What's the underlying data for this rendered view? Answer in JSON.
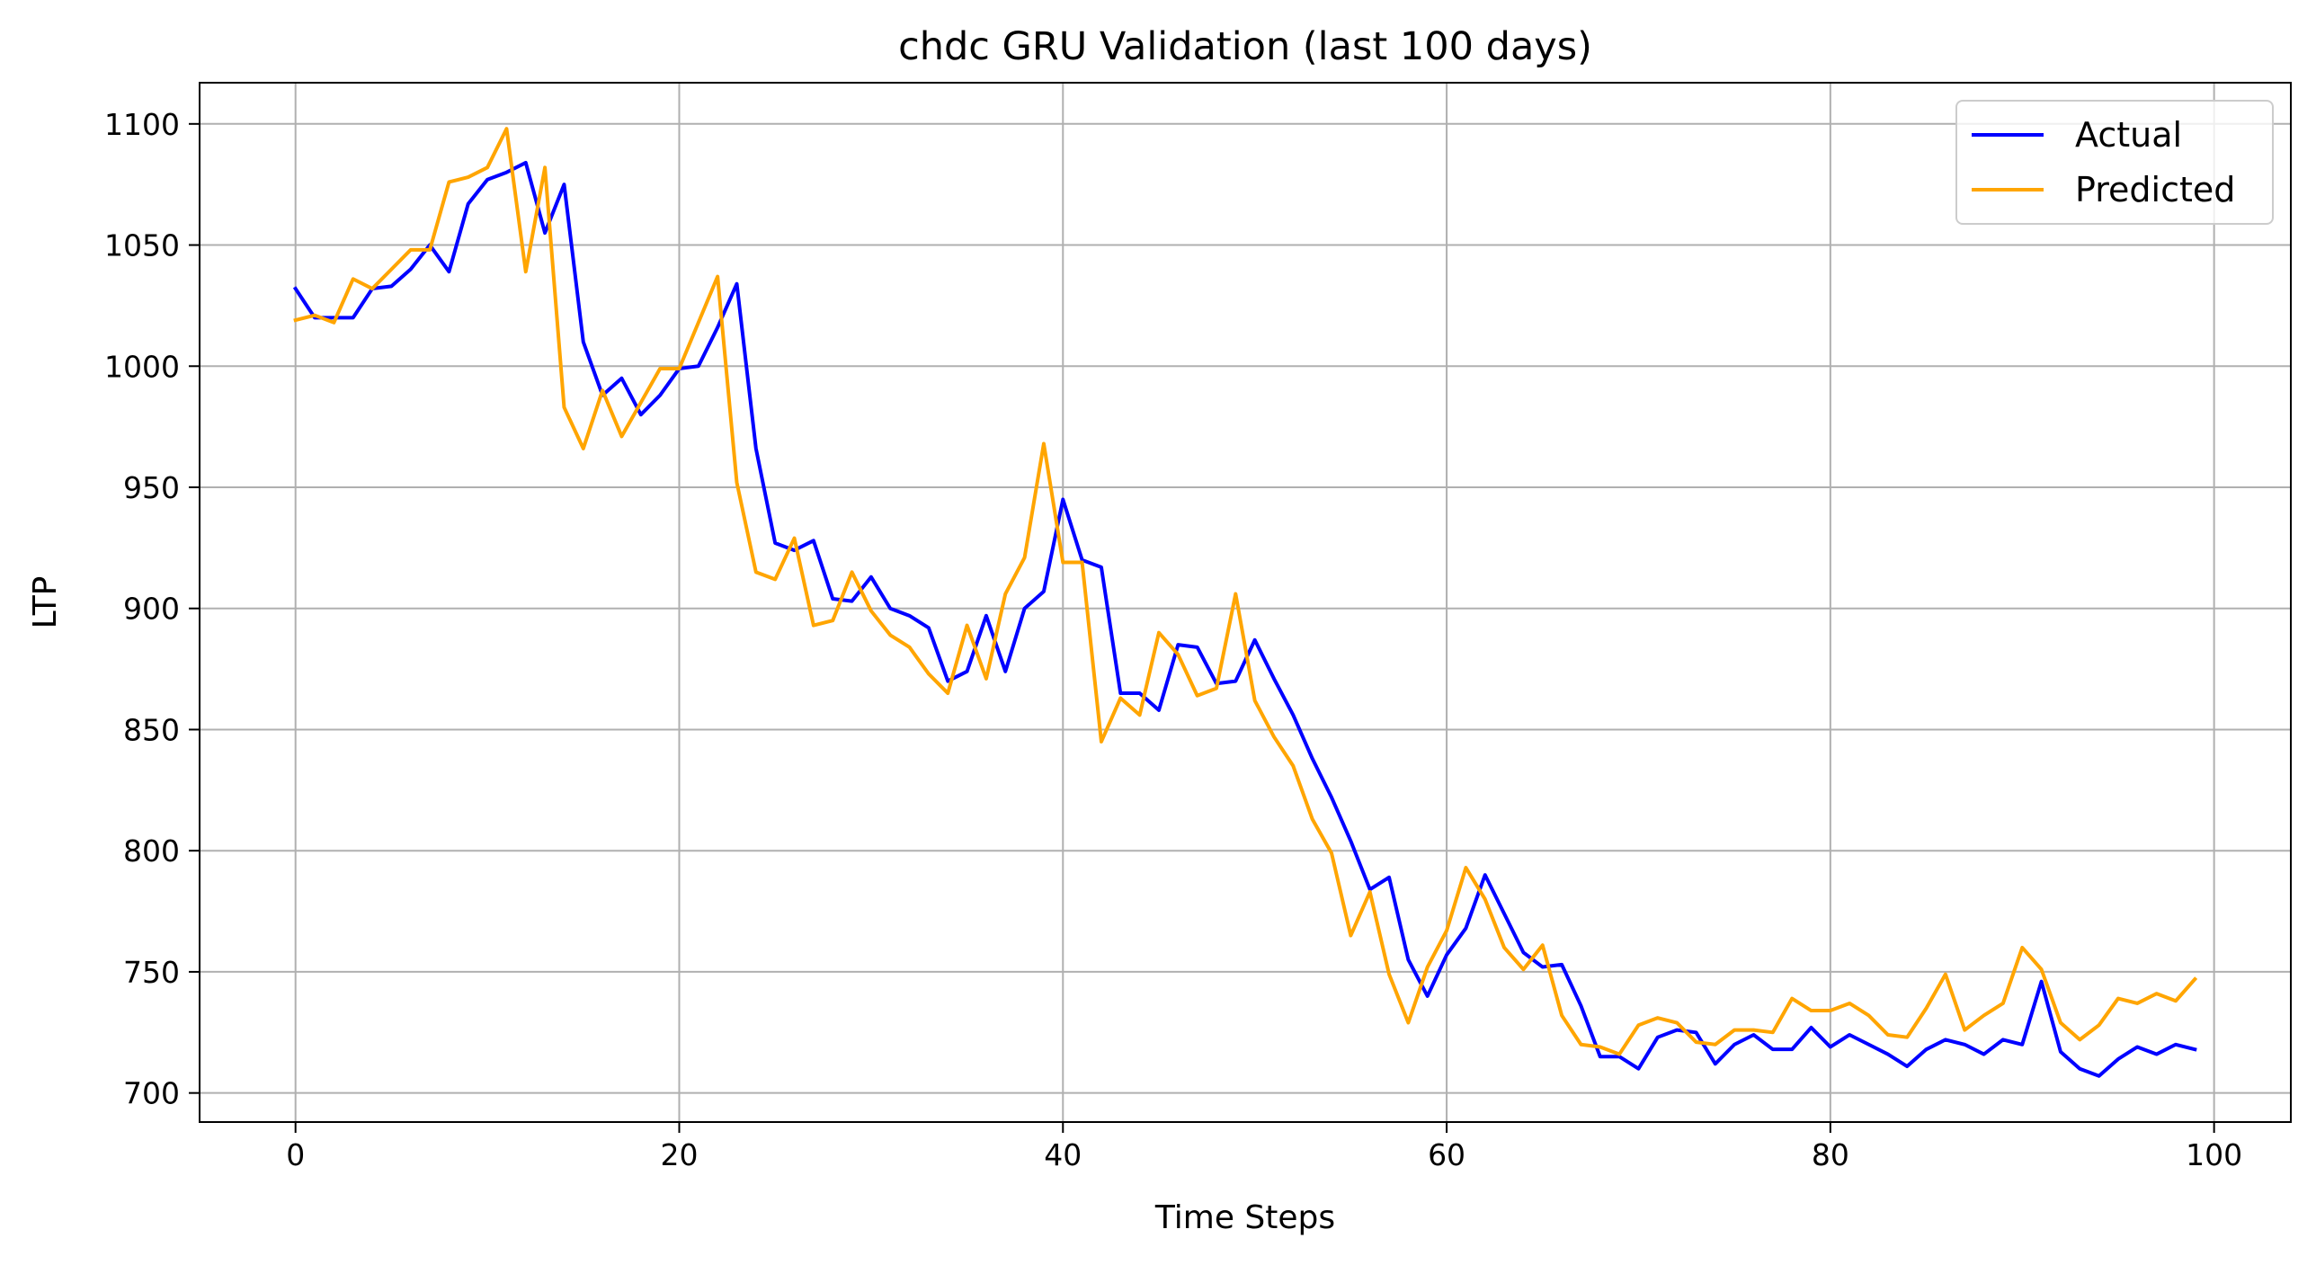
{
  "chart_data": {
    "type": "line",
    "title": "chdc GRU Validation (last 100 days)",
    "xlabel": "Time Steps",
    "ylabel": "LTP",
    "xlim": [
      -5,
      104
    ],
    "ylim": [
      688,
      1117
    ],
    "xticks": [
      0,
      20,
      40,
      60,
      80,
      100
    ],
    "yticks": [
      700,
      750,
      800,
      850,
      900,
      950,
      1000,
      1050,
      1100
    ],
    "grid": true,
    "legend_position": "top-right",
    "series": [
      {
        "name": "Actual",
        "color": "#0000ff",
        "values": [
          1032,
          1020,
          1020,
          1020,
          1032,
          1033,
          1040,
          1050,
          1039,
          1067,
          1077,
          1080,
          1084,
          1055,
          1075,
          1010,
          988,
          995,
          980,
          988,
          999,
          1000,
          1016,
          1034,
          966,
          927,
          924,
          928,
          904,
          903,
          913,
          900,
          897,
          892,
          870,
          874,
          897,
          874,
          900,
          907,
          945,
          920,
          917,
          865,
          865,
          858,
          885,
          884,
          869,
          870,
          887,
          871,
          856,
          838,
          822,
          804,
          784,
          789,
          755,
          740,
          757,
          768,
          790,
          774,
          758,
          752,
          753,
          736,
          715,
          715,
          710,
          723,
          726,
          725,
          712,
          720,
          724,
          718,
          718,
          727,
          719,
          724,
          720,
          716,
          711,
          718,
          722,
          720,
          716,
          722,
          720,
          746,
          717,
          710,
          707,
          714,
          719,
          716,
          720,
          718
        ]
      },
      {
        "name": "Predicted",
        "color": "#ffa500",
        "values": [
          1019,
          1021,
          1018,
          1036,
          1032,
          1040,
          1048,
          1048,
          1076,
          1078,
          1082,
          1098,
          1039,
          1082,
          983,
          966,
          990,
          971,
          985,
          999,
          999,
          1018,
          1037,
          952,
          915,
          912,
          929,
          893,
          895,
          915,
          899,
          889,
          884,
          873,
          865,
          893,
          871,
          906,
          921,
          968,
          919,
          919,
          845,
          863,
          856,
          890,
          881,
          864,
          867,
          906,
          862,
          847,
          835,
          813,
          799,
          765,
          783,
          749,
          729,
          752,
          767,
          793,
          780,
          760,
          751,
          761,
          732,
          720,
          719,
          716,
          728,
          731,
          729,
          721,
          720,
          726,
          726,
          725,
          739,
          734,
          734,
          737,
          732,
          724,
          723,
          735,
          749,
          726,
          732,
          737,
          760,
          751,
          729,
          722,
          728,
          739,
          737,
          741,
          738,
          747
        ]
      }
    ]
  }
}
